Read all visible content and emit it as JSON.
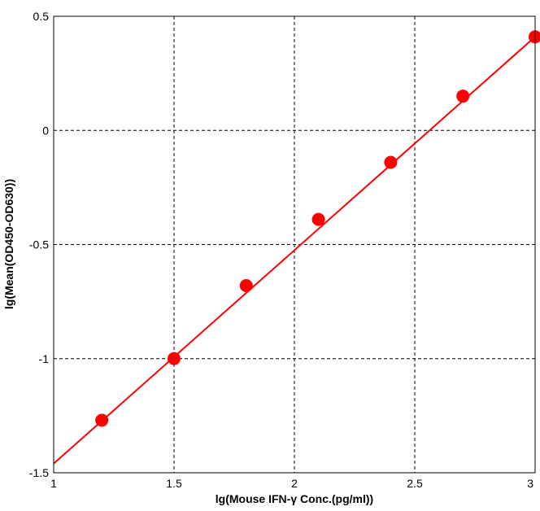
{
  "chart_data": {
    "type": "scatter",
    "xlabel": "lg(Mouse IFN-γ Conc.(pg/ml))",
    "ylabel": "lg(Mean(OD450-OD630))",
    "xlim": [
      1,
      3
    ],
    "ylim": [
      -1.5,
      0.5
    ],
    "x_ticks": [
      1,
      1.5,
      2,
      2.5,
      3
    ],
    "y_ticks": [
      -1.5,
      -1,
      -0.5,
      0,
      0.5
    ],
    "x_tick_labels": [
      "1",
      "1.5",
      "2",
      "2.5",
      "3"
    ],
    "y_tick_labels": [
      "-1.5",
      "-1",
      "-0.5",
      "0",
      "0.5"
    ],
    "grid": true,
    "series": [
      {
        "x": [
          1.2,
          1.5,
          1.8,
          2.1,
          2.4,
          2.7,
          3.0
        ],
        "y": [
          -1.27,
          -1.0,
          -0.68,
          -0.39,
          -0.14,
          0.15,
          0.41
        ],
        "color": "#ff0000"
      }
    ],
    "fit_line": {
      "x": [
        1.0,
        3.0
      ],
      "y": [
        -1.46,
        0.41
      ],
      "color": "#ff0000"
    }
  }
}
